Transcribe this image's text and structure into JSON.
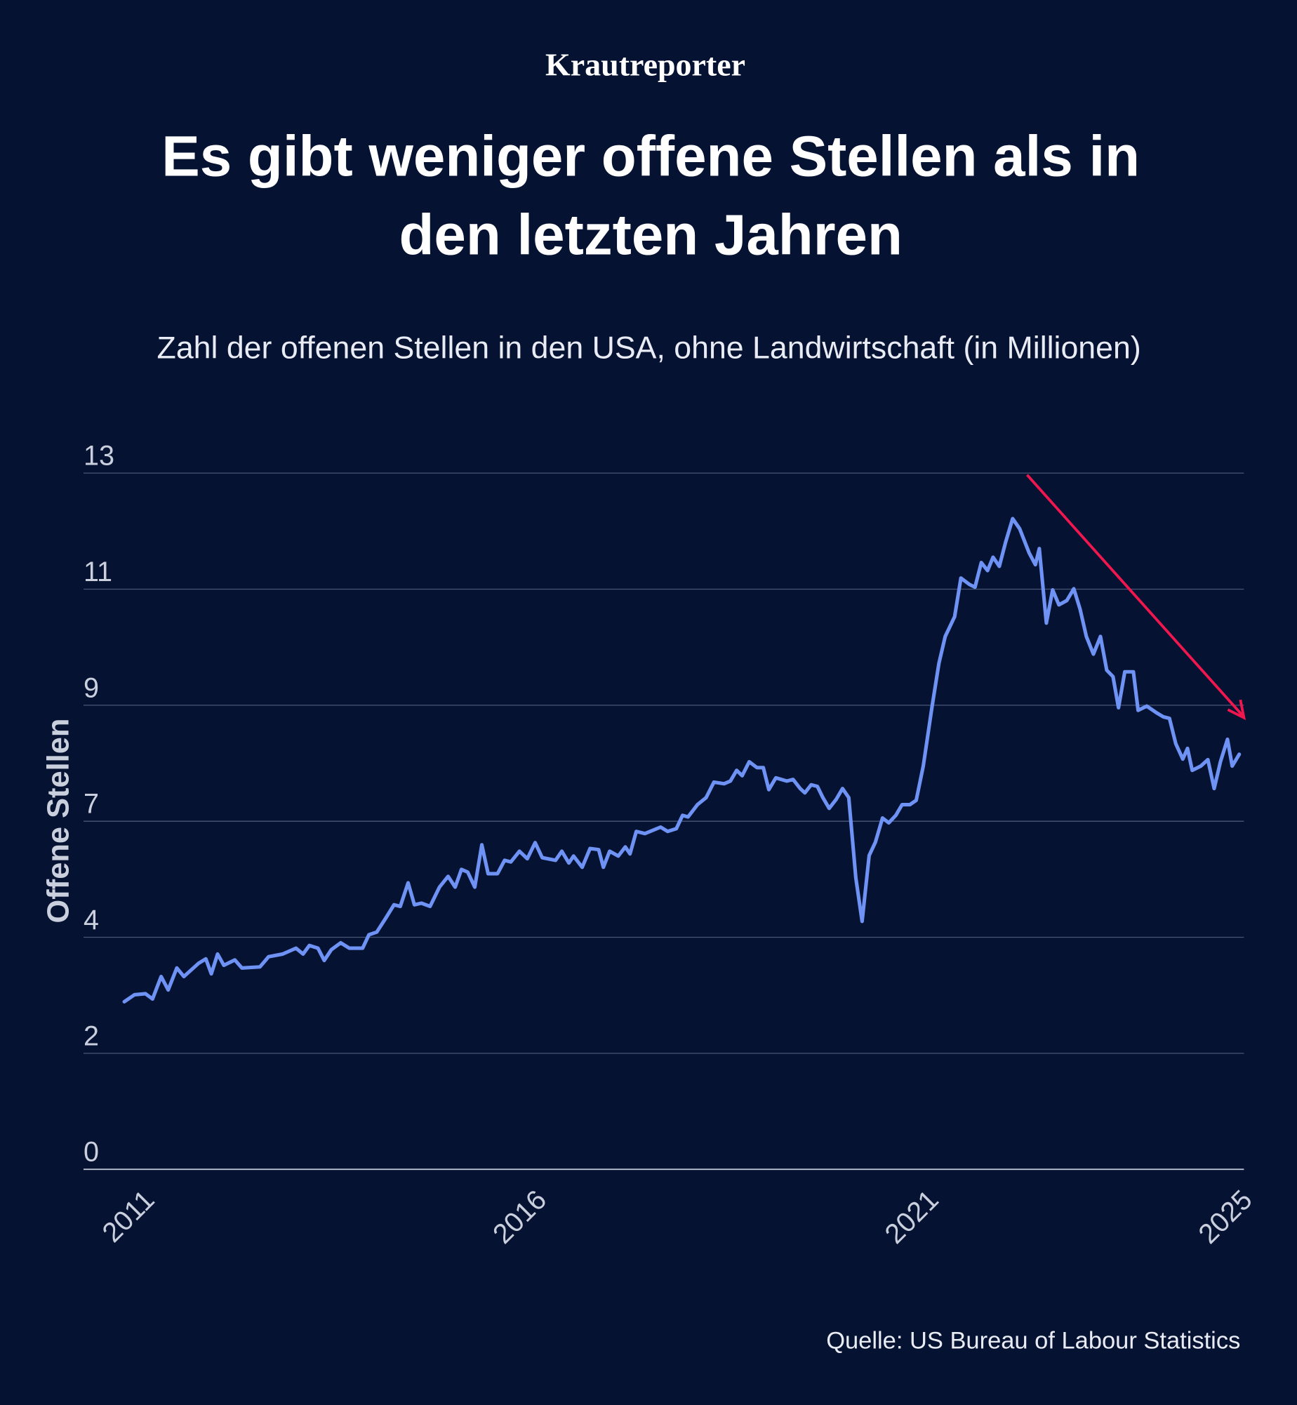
{
  "brand": "Krautreporter",
  "chart_data": {
    "type": "line",
    "title": [
      "Es gibt weniger offene Stellen als in",
      "den letzten Jahren"
    ],
    "subtitle": "Zahl der offenen Stellen in den USA, ohne Landwirtschaft (in Millionen)",
    "y_label": "Offene Stellen",
    "source": "Quelle: US Bureau of Labour Statistics",
    "color": "#6f93f5",
    "grid": true,
    "xlim": [
      2010.35,
      2025.15
    ],
    "xticks": [
      2011,
      2016,
      2021,
      2025
    ],
    "ylim": [
      0,
      13
    ],
    "yticks": [
      0,
      {
        "value": 2.1667,
        "label": "2"
      },
      {
        "value": 4.3333,
        "label": "4"
      },
      {
        "value": 6.5,
        "label": "7"
      },
      {
        "value": 8.6667,
        "label": "9"
      },
      {
        "value": 10.8333,
        "label": "11"
      },
      13
    ],
    "x": [
      2010.87,
      2011.0,
      2011.14,
      2011.23,
      2011.34,
      2011.43,
      2011.54,
      2011.63,
      2011.82,
      2011.91,
      2011.98,
      2012.06,
      2012.14,
      2012.28,
      2012.37,
      2012.6,
      2012.71,
      2012.89,
      2013.06,
      2013.15,
      2013.23,
      2013.34,
      2013.42,
      2013.51,
      2013.63,
      2013.74,
      2013.91,
      2013.99,
      2014.09,
      2014.2,
      2014.31,
      2014.39,
      2014.49,
      2014.57,
      2014.66,
      2014.77,
      2014.89,
      2015.0,
      2015.09,
      2015.17,
      2015.25,
      2015.34,
      2015.43,
      2015.51,
      2015.63,
      2015.72,
      2015.8,
      2015.91,
      2016.01,
      2016.11,
      2016.2,
      2016.37,
      2016.45,
      2016.54,
      2016.6,
      2016.71,
      2016.81,
      2016.92,
      2016.98,
      2017.06,
      2017.17,
      2017.26,
      2017.32,
      2017.4,
      2017.51,
      2017.71,
      2017.8,
      2017.91,
      2017.99,
      2018.06,
      2018.18,
      2018.29,
      2018.39,
      2018.52,
      2018.6,
      2018.68,
      2018.75,
      2018.84,
      2018.94,
      2019.02,
      2019.09,
      2019.18,
      2019.32,
      2019.4,
      2019.49,
      2019.55,
      2019.63,
      2019.71,
      2019.78,
      2019.86,
      2019.95,
      2020.03,
      2020.11,
      2020.2,
      2020.28,
      2020.37,
      2020.45,
      2020.54,
      2020.62,
      2020.71,
      2020.79,
      2020.89,
      2020.97,
      2021.06,
      2021.17,
      2021.26,
      2021.34,
      2021.46,
      2021.54,
      2021.65,
      2021.72,
      2021.8,
      2021.88,
      2021.95,
      2022.03,
      2022.11,
      2022.2,
      2022.29,
      2022.41,
      2022.49,
      2022.54,
      2022.63,
      2022.71,
      2022.79,
      2022.89,
      2022.98,
      2023.06,
      2023.14,
      2023.23,
      2023.32,
      2023.4,
      2023.48,
      2023.55,
      2023.63,
      2023.74,
      2023.8,
      2023.91,
      2024.03,
      2024.12,
      2024.2,
      2024.28,
      2024.37,
      2024.43,
      2024.49,
      2024.6,
      2024.69,
      2024.77,
      2024.85,
      2024.94,
      2025.0,
      2025.09
    ],
    "values": [
      3.13,
      3.26,
      3.28,
      3.18,
      3.6,
      3.35,
      3.76,
      3.6,
      3.85,
      3.93,
      3.65,
      4.02,
      3.81,
      3.91,
      3.76,
      3.78,
      3.97,
      4.02,
      4.13,
      4.02,
      4.18,
      4.13,
      3.9,
      4.1,
      4.23,
      4.13,
      4.13,
      4.38,
      4.43,
      4.68,
      4.94,
      4.91,
      5.35,
      4.94,
      4.97,
      4.91,
      5.27,
      5.47,
      5.27,
      5.6,
      5.55,
      5.27,
      6.06,
      5.52,
      5.52,
      5.77,
      5.74,
      5.94,
      5.8,
      6.1,
      5.82,
      5.77,
      5.94,
      5.72,
      5.85,
      5.64,
      5.99,
      5.97,
      5.64,
      5.94,
      5.85,
      6.02,
      5.89,
      6.31,
      6.27,
      6.39,
      6.31,
      6.36,
      6.61,
      6.58,
      6.81,
      6.94,
      7.23,
      7.2,
      7.25,
      7.45,
      7.35,
      7.61,
      7.5,
      7.5,
      7.09,
      7.31,
      7.25,
      7.28,
      7.11,
      7.03,
      7.18,
      7.15,
      6.94,
      6.74,
      6.91,
      7.11,
      6.94,
      5.44,
      4.63,
      5.86,
      6.11,
      6.56,
      6.47,
      6.61,
      6.81,
      6.81,
      6.89,
      7.53,
      8.62,
      9.45,
      9.95,
      10.32,
      11.04,
      10.92,
      10.87,
      11.33,
      11.18,
      11.43,
      11.26,
      11.71,
      12.15,
      11.96,
      11.51,
      11.29,
      11.59,
      10.2,
      10.82,
      10.54,
      10.62,
      10.84,
      10.46,
      9.95,
      9.62,
      9.95,
      9.32,
      9.2,
      8.62,
      9.29,
      9.29,
      8.57,
      8.65,
      8.53,
      8.45,
      8.42,
      7.95,
      7.66,
      7.86,
      7.45,
      7.53,
      7.65,
      7.11,
      7.61,
      8.03,
      7.53,
      7.75
    ]
  }
}
